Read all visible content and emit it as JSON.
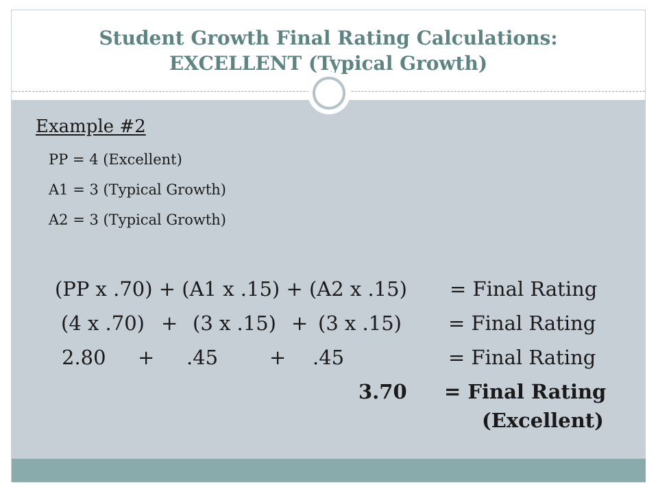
{
  "title": {
    "line1": "Student Growth Final Rating Calculations:",
    "line2": "EXCELLENT (Typical Growth)"
  },
  "example": {
    "heading": "Example #2",
    "definitions": [
      "PP = 4 (Excellent)",
      "A1 = 3 (Typical Growth)",
      "A2 = 3 (Typical Growth)"
    ]
  },
  "calculation": {
    "formula": {
      "expression": "(PP x .70) + (A1 x .15) + (A2 x .15)",
      "result": "= Final Rating"
    },
    "substituted": {
      "term1": "(4 x .70)",
      "op1": "+",
      "term2": "(3 x .15)",
      "op2": "+",
      "term3": "(3 x .15)",
      "result": "= Final Rating"
    },
    "products": {
      "term1": "2.80",
      "op1": "+",
      "term2": ".45",
      "op2": "+",
      "term3": ".45",
      "result": "= Final Rating"
    },
    "total": {
      "value": "3.70",
      "result": "= Final Rating",
      "rating": "(Excellent)"
    }
  },
  "colors": {
    "title": "#5c8582",
    "content_background": "#c6cfd5",
    "footer_band": "#8aabab",
    "circle_ring": "#b3c3c8"
  }
}
